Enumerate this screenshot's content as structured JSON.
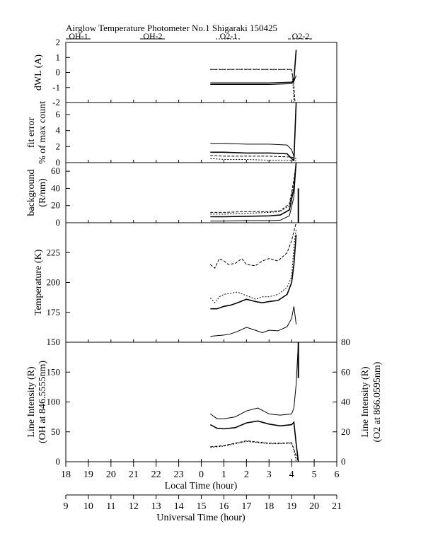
{
  "title": "Airglow Temperature Photometer No.1  Shigaraki  150425",
  "legend": [
    {
      "label": "OH-1",
      "dash": ""
    },
    {
      "label": "OH-2",
      "dash": ""
    },
    {
      "label": "O2-1",
      "dash": "2,2"
    },
    {
      "label": "O2-2",
      "dash": "4,2"
    }
  ],
  "x_axes": {
    "local": {
      "label": "Local Time (hour)",
      "ticks": [
        "18",
        "19",
        "20",
        "21",
        "22",
        "23",
        "0",
        "1",
        "2",
        "3",
        "4",
        "5",
        "6"
      ]
    },
    "universal": {
      "label": "Universal Time (hour)",
      "ticks": [
        "9",
        "10",
        "11",
        "12",
        "13",
        "14",
        "15",
        "16",
        "17",
        "18",
        "19",
        "20",
        "21"
      ]
    }
  },
  "chart_data": [
    {
      "type": "line",
      "panel": "dwl",
      "ylabel": "dWL (A)",
      "ylim": [
        -2,
        2
      ],
      "yticks": [
        "2",
        "1",
        "0",
        "-1",
        "-2"
      ],
      "x_unit": "local time hour (18 = 18 LT, 24 = 0 LT, 28 = 4 LT)",
      "series": [
        {
          "name": "OH-1",
          "x": [
            24.4,
            25,
            26,
            27,
            28,
            28.1,
            28.2
          ],
          "y": [
            -0.8,
            -0.8,
            -0.8,
            -0.8,
            -0.75,
            -0.6,
            -0.2
          ]
        },
        {
          "name": "OH-2",
          "x": [
            24.4,
            25,
            26,
            27,
            28,
            28.1,
            28.2
          ],
          "y": [
            -0.7,
            -0.7,
            -0.7,
            -0.7,
            -0.65,
            -0.5,
            1.5
          ]
        },
        {
          "name": "O2-1",
          "x": [
            24.4,
            25,
            26,
            27,
            28,
            28.05,
            28.1
          ],
          "y": [
            0.2,
            0.2,
            0.22,
            0.2,
            0.2,
            -0.5,
            -2
          ]
        },
        {
          "name": "O2-2",
          "x": [
            24.4,
            25,
            26,
            27,
            28,
            28.1,
            28.15
          ],
          "y": [
            0.2,
            0.2,
            0.2,
            0.2,
            0.2,
            -0.8,
            -2
          ]
        }
      ]
    },
    {
      "type": "line",
      "panel": "fit_error",
      "ylabel": "fit error",
      "ylabel2": "% of max count",
      "ylim": [
        0,
        7.5
      ],
      "yticks": [
        "6",
        "4",
        "2",
        "0"
      ],
      "series": [
        {
          "name": "OH-1",
          "x": [
            24.4,
            25,
            26,
            27,
            27.8,
            28,
            28.1
          ],
          "y": [
            2.4,
            2.4,
            2.3,
            2.3,
            2.2,
            1.6,
            0.8
          ]
        },
        {
          "name": "OH-2",
          "x": [
            24.4,
            25,
            26,
            27,
            27.8,
            28,
            28.1,
            28.2
          ],
          "y": [
            1.3,
            1.3,
            1.2,
            1.2,
            1.1,
            0.5,
            0.3,
            7.5
          ]
        },
        {
          "name": "O2-1",
          "x": [
            24.4,
            25,
            26,
            27,
            28,
            28.2
          ],
          "y": [
            0.5,
            0.4,
            0.4,
            0.3,
            0.3,
            0.2
          ]
        },
        {
          "name": "O2-2",
          "x": [
            24.4,
            25,
            26,
            27,
            28,
            28.2
          ],
          "y": [
            0.9,
            0.8,
            0.8,
            0.8,
            0.7,
            0.5
          ]
        }
      ]
    },
    {
      "type": "line",
      "panel": "background",
      "ylabel": "background",
      "ylabel2": "(R/nm)",
      "ylim": [
        0,
        70
      ],
      "yticks": [
        "60",
        "40",
        "20",
        "0"
      ],
      "series": [
        {
          "name": "OH-1",
          "x": [
            24.4,
            25,
            26,
            27,
            27.5,
            27.9,
            28.1,
            28.2
          ],
          "y": [
            2,
            2,
            2.5,
            2.5,
            3,
            8,
            30,
            70
          ]
        },
        {
          "name": "OH-2",
          "x": [
            24.4,
            25,
            26,
            27,
            27.5,
            27.9,
            28.1,
            28.2
          ],
          "y": [
            7,
            7,
            7.5,
            8,
            9,
            15,
            40,
            70
          ]
        },
        {
          "name": "O2-1",
          "x": [
            24.4,
            25,
            26,
            27,
            27.5,
            27.9,
            28.1,
            28.2
          ],
          "y": [
            10,
            10,
            11,
            12,
            13,
            20,
            45,
            70
          ]
        },
        {
          "name": "O2-2",
          "x": [
            24.4,
            25,
            26,
            27,
            27.5,
            27.9,
            28.1,
            28.2
          ],
          "y": [
            12,
            12,
            13,
            13,
            14,
            22,
            50,
            70
          ]
        },
        {
          "name": "spike",
          "x": [
            28.3,
            28.3
          ],
          "y": [
            0,
            40
          ]
        }
      ]
    },
    {
      "type": "line",
      "panel": "temperature",
      "ylabel": "Temperature (K)",
      "ylim": [
        150,
        250
      ],
      "yticks": [
        "225",
        "200",
        "175",
        "150"
      ],
      "series": [
        {
          "name": "OH-1",
          "x": [
            24.4,
            24.7,
            25,
            25.3,
            25.6,
            26,
            26.4,
            26.7,
            27,
            27.4,
            27.8,
            28,
            28.1,
            28.2
          ],
          "y": [
            155,
            155.5,
            156,
            157,
            159,
            162.5,
            160,
            158,
            160,
            159.5,
            163,
            170,
            180,
            165
          ]
        },
        {
          "name": "OH-2",
          "x": [
            24.4,
            24.7,
            25,
            25.3,
            25.6,
            26,
            26.4,
            26.7,
            27,
            27.4,
            27.8,
            28,
            28.1,
            28.2
          ],
          "y": [
            178,
            178,
            180,
            181,
            183,
            186,
            184,
            183,
            184,
            185,
            190,
            200,
            215,
            240
          ]
        },
        {
          "name": "O2-1",
          "x": [
            24.4,
            24.6,
            24.8,
            25,
            25.3,
            25.6,
            26,
            26.4,
            26.7,
            27,
            27.4,
            27.8,
            28,
            28.1,
            28.2
          ],
          "y": [
            187,
            183,
            188,
            190,
            191,
            192,
            189,
            186,
            188,
            188,
            190,
            196,
            205,
            230,
            245
          ]
        },
        {
          "name": "O2-2",
          "x": [
            24.4,
            24.6,
            24.8,
            25,
            25.2,
            25.5,
            25.8,
            26,
            26.4,
            26.7,
            27,
            27.4,
            27.8,
            28,
            28.1,
            28.2
          ],
          "y": [
            215,
            212,
            220,
            218,
            215,
            216,
            220,
            215,
            214,
            218,
            220,
            218,
            225,
            235,
            243,
            250
          ]
        }
      ]
    },
    {
      "type": "line",
      "panel": "line_intensity",
      "ylabel": "Line Intensity (R)",
      "ylabel2": "(OH at 846.5555nm)",
      "ylabel_right": "Line Intensity (R)",
      "ylabel_right2": "(O2 at 866.0595nm)",
      "ylim": [
        0,
        200
      ],
      "ylim_right": [
        0,
        80
      ],
      "yticks": [
        "150",
        "100",
        "50",
        "0"
      ],
      "yticks_right": [
        "80",
        "60",
        "40",
        "20",
        "0"
      ],
      "series": [
        {
          "name": "OH-1",
          "x": [
            24.4,
            24.7,
            25,
            25.5,
            26,
            26.5,
            27,
            27.5,
            28,
            28.1,
            28.2,
            28.3
          ],
          "y": [
            80,
            72,
            72,
            75,
            85,
            90,
            80,
            78,
            80,
            90,
            130,
            200
          ]
        },
        {
          "name": "OH-2",
          "x": [
            24.4,
            24.7,
            25,
            25.5,
            26,
            26.5,
            27,
            27.5,
            28,
            28.1,
            28.2,
            28.3
          ],
          "y": [
            62,
            56,
            55,
            57,
            65,
            68,
            63,
            60,
            62,
            66,
            30,
            0
          ]
        },
        {
          "name": "O2-1",
          "x": [
            24.4,
            25,
            25.5,
            26,
            26.5,
            27,
            27.5,
            28,
            28.1,
            28.2
          ],
          "y": [
            24,
            26,
            30,
            34,
            32,
            30,
            30,
            31,
            20,
            0
          ]
        },
        {
          "name": "O2-2",
          "x": [
            24.4,
            25,
            25.5,
            26,
            26.5,
            27,
            27.5,
            28,
            28.15,
            28.3
          ],
          "y": [
            25,
            27,
            31,
            35,
            33,
            31,
            31,
            32,
            15,
            0
          ]
        },
        {
          "name": "spike",
          "x": [
            28.3,
            28.3
          ],
          "y": [
            140,
            200
          ]
        }
      ]
    }
  ]
}
